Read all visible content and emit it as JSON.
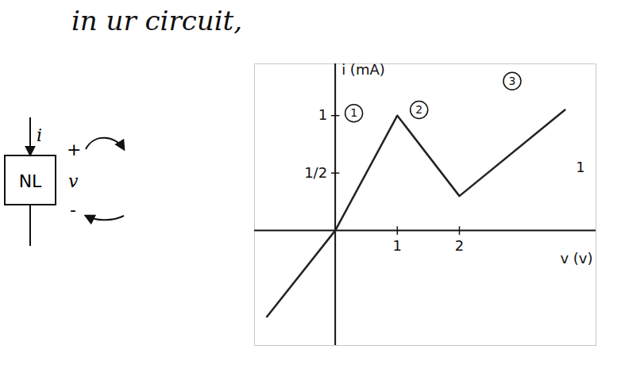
{
  "chart_data": {
    "type": "line",
    "title": "in ur circuit,",
    "x": [
      -1.1,
      0,
      1,
      2,
      3.7
    ],
    "values": [
      -0.75,
      0,
      1,
      0.3,
      1.05
    ],
    "color": "#222222",
    "xlabel": "v (v)",
    "ylabel": "i (mA)",
    "xlim": [
      -1.3,
      4.2
    ],
    "ylim": [
      -1,
      1.45
    ],
    "xticks": [
      1,
      2
    ],
    "yticks": [
      {
        "value": 0.5,
        "label": "1/2"
      },
      1
    ],
    "grid": false,
    "region_labels": [
      {
        "x": 0.3,
        "y": 1.02,
        "label": "1"
      },
      {
        "x": 1.35,
        "y": 1.05,
        "label": "2"
      },
      {
        "x": 2.85,
        "y": 1.3,
        "label": "3"
      }
    ],
    "annotations": [
      {
        "x": 3.95,
        "y": 0.55,
        "text": "1"
      }
    ]
  },
  "diagram": {
    "element": "NL",
    "current": "i",
    "plus": "+",
    "voltage": "v",
    "minus": "-"
  }
}
